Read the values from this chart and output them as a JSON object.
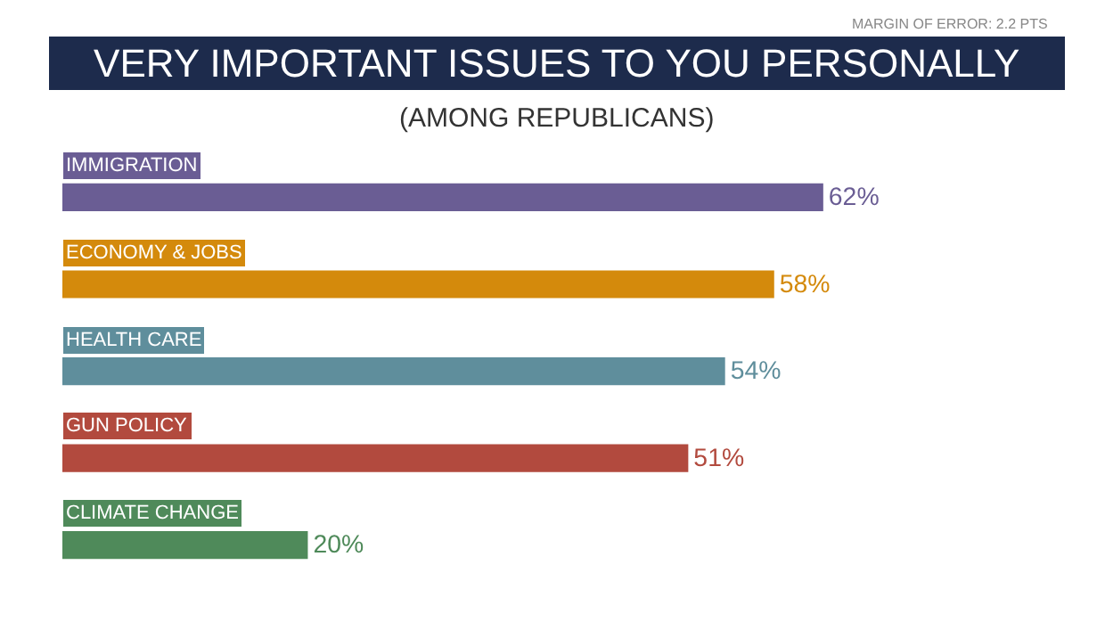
{
  "chart_data": {
    "type": "bar",
    "orientation": "horizontal",
    "title": "VERY IMPORTANT ISSUES TO YOU PERSONALLY",
    "subtitle": "(AMONG REPUBLICANS)",
    "annotations": [
      "MARGIN OF ERROR: 2.2 PTS"
    ],
    "categories": [
      "IMMIGRATION",
      "ECONOMY & JOBS",
      "HEALTH CARE",
      "GUN POLICY",
      "CLIMATE CHANGE"
    ],
    "values": [
      62,
      58,
      54,
      51,
      20
    ],
    "value_labels": [
      "62%",
      "58%",
      "54%",
      "51%",
      "20%"
    ],
    "colors": [
      "#6a5d94",
      "#d48a0c",
      "#5f8e9c",
      "#b24a3e",
      "#4f8a5a"
    ]
  }
}
